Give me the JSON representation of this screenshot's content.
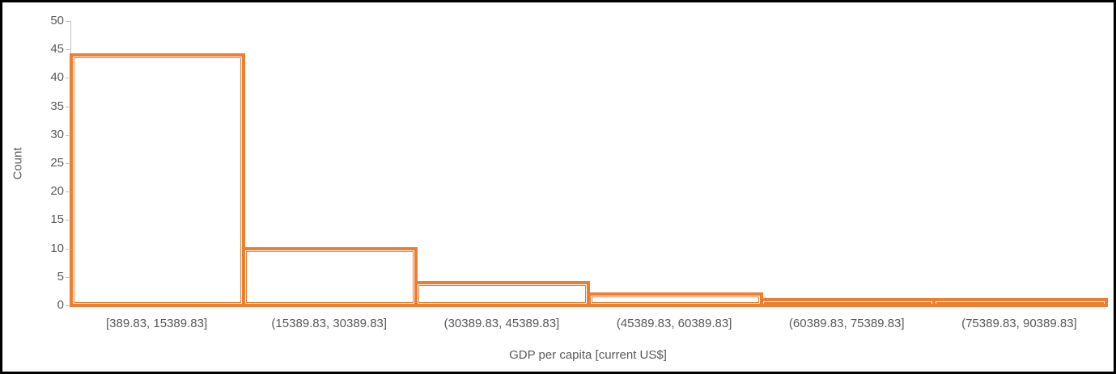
{
  "chart_data": {
    "type": "bar",
    "chart_kind": "histogram",
    "categories": [
      "[389.83, 15389.83]",
      "(15389.83, 30389.83]",
      "(30389.83, 45389.83]",
      "(45389.83, 60389.83]",
      "(60389.83, 75389.83]",
      "(75389.83, 90389.83]"
    ],
    "values": [
      44,
      10,
      4,
      2,
      1,
      1
    ],
    "title": "",
    "xlabel": "GDP per capita [current US$]",
    "ylabel": "Count",
    "ylim": [
      0,
      50
    ],
    "yticks": [
      0,
      5,
      10,
      15,
      20,
      25,
      30,
      35,
      40,
      45,
      50
    ],
    "grid": "off",
    "legend": "none",
    "colors": {
      "bar_border": "#ED7D31",
      "bar_fill": "#FFFFFF",
      "axis_line": "#BFBFBF",
      "text": "#595959",
      "frame_border": "#000000",
      "background": "#FFFFFF"
    }
  }
}
